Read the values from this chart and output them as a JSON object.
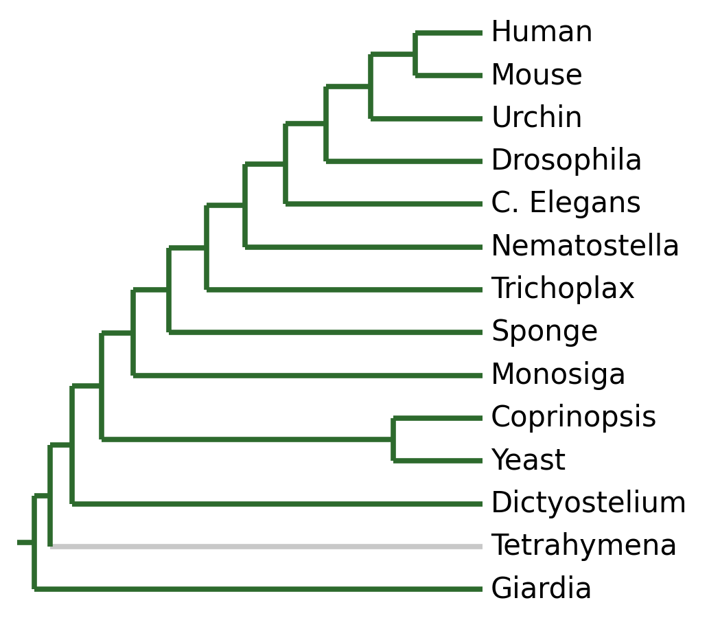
{
  "taxa": [
    "Human",
    "Mouse",
    "Urchin",
    "Drosophila",
    "C. Elegans",
    "Nematostella",
    "Trichoplax",
    "Sponge",
    "Monosiga",
    "Coprinopsis",
    "Yeast",
    "Dictyostelium",
    "Tetrahymena",
    "Giardia"
  ],
  "tree_color": "#2d6a2d",
  "grey_color": "#c8c8c8",
  "bg_color": "#ffffff",
  "text_color": "#000000",
  "line_width": 5.5,
  "font_size": 30,
  "figsize": [
    10.49,
    9.0
  ]
}
